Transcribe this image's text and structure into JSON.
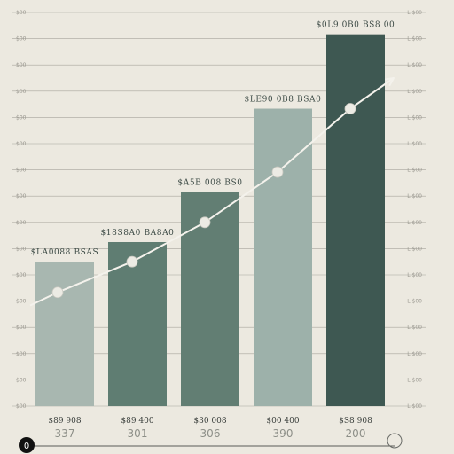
{
  "chart_data": {
    "type": "bar",
    "categories": [
      "337",
      "301",
      "306",
      "390",
      "200"
    ],
    "category_labels_top": [
      "$89 908",
      "$89 400",
      "$30 008",
      "$00 400",
      "$S8 908"
    ],
    "values": [
      66,
      75,
      98,
      136,
      170
    ],
    "bar_labels": [
      "$LA0088 BSAS",
      "$18S8A0 BA8A0",
      "$A5B 008 BS0",
      "$LE90 0B8 BSA0",
      "$0L9 0B0 BS8 00"
    ],
    "bar_colors": [
      "#a8b7b0",
      "#5f7d72",
      "#627e73",
      "#9db1aa",
      "#3e5852"
    ],
    "trend_values": [
      52,
      66,
      84,
      107,
      136
    ],
    "trend_end_value": 150,
    "ylim": [
      0,
      180
    ],
    "gridlines": 16,
    "grid": true,
    "tick_label_left": "$00",
    "tick_label_right": "L $00",
    "footer_badge_left": "0",
    "title": "",
    "xlabel": "",
    "ylabel": "",
    "colors": {
      "background": "#ece9e0",
      "gridline": "#9c9a92",
      "trend_line": "#f4f2ec",
      "trend_marker": "#ecebe4",
      "footer_badge": "#111111"
    }
  }
}
